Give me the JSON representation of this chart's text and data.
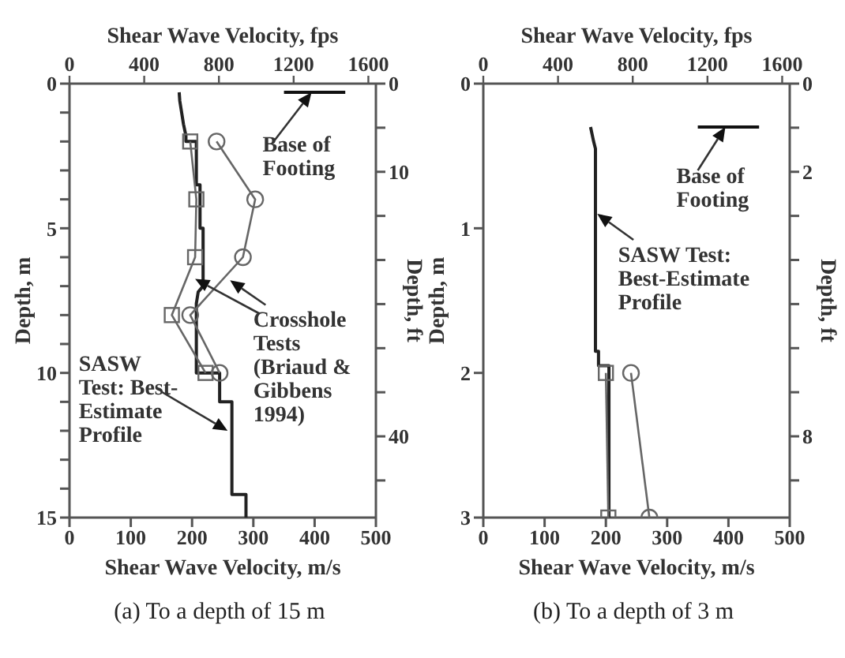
{
  "chart_data": [
    {
      "type": "line",
      "title": "(a) To a depth of 15 m",
      "xlabel": "Shear Wave Velocity, m/s",
      "x2label": "Shear Wave Velocity, fps",
      "ylabel": "Depth, m",
      "y2label": "Depth, ft",
      "xlim": [
        0,
        500
      ],
      "xticks": [
        0,
        100,
        200,
        300,
        400,
        500
      ],
      "x2lim": [
        0,
        1640.4
      ],
      "x2ticks": [
        0,
        400,
        800,
        1200,
        1600
      ],
      "ylim": [
        15,
        0
      ],
      "yticks": [
        0,
        {
          "value": 1,
          "label": null
        },
        {
          "value": 2,
          "label": null
        },
        {
          "value": 3,
          "label": null
        },
        {
          "value": 4,
          "label": null
        },
        5,
        {
          "value": 6,
          "label": null
        },
        {
          "value": 7,
          "label": null
        },
        {
          "value": 8,
          "label": null
        },
        {
          "value": 9,
          "label": null
        },
        10,
        {
          "value": 11,
          "label": null
        },
        {
          "value": 12,
          "label": null
        },
        {
          "value": 13,
          "label": null
        },
        {
          "value": 14,
          "label": null
        },
        15
      ],
      "y2lim": [
        49.21,
        0
      ],
      "y2ticks": [
        0,
        {
          "value": 5,
          "label": null
        },
        10,
        {
          "value": 15,
          "label": null
        },
        {
          "value": 20,
          "label": null
        },
        {
          "value": 25,
          "label": null
        },
        {
          "value": 30,
          "label": null
        },
        {
          "value": 35,
          "label": null
        },
        40,
        {
          "value": 45,
          "label": null
        }
      ],
      "series": [
        {
          "color": "#222222",
          "marker": "none",
          "x": [
            179,
            180,
            183,
            186,
            190,
            190,
            207,
            207,
            213,
            213,
            218,
            218,
            210,
            207,
            207,
            245,
            245,
            265,
            265,
            288,
            288
          ],
          "values": [
            0.3,
            0.6,
            1.0,
            1.4,
            1.8,
            2.0,
            2.0,
            3.5,
            3.5,
            5.0,
            5.0,
            7.0,
            7.2,
            7.6,
            10.0,
            10.0,
            11.0,
            11.0,
            14.2,
            14.2,
            15
          ]
        },
        {
          "color": "#666666",
          "marker": "circle",
          "x": [
            240,
            303,
            283,
            197,
            245
          ],
          "values": [
            2,
            4,
            6,
            8,
            10
          ]
        },
        {
          "color": "#666666",
          "marker": "square",
          "x": [
            197,
            207,
            205,
            167,
            222
          ],
          "values": [
            2,
            4,
            6,
            8,
            10
          ]
        },
        {
          "color": "#111111",
          "marker": "none",
          "x": [
            350,
            450
          ],
          "values": [
            0.3,
            0.3
          ]
        }
      ],
      "annotations": [
        {
          "text": "Base of Footing",
          "x": 395,
          "y": 0.3
        },
        {
          "text": "Crosshole Tests (Briaud & Gibbens 1994)",
          "x": 262,
          "y": 6.8
        },
        {
          "text": "SASW Test: Best-Estimate Profile",
          "x": 258,
          "y": 12
        }
      ]
    },
    {
      "type": "line",
      "title": "(b) To a depth of 3 m",
      "xlabel": "Shear Wave Velocity, m/s",
      "x2label": "Shear Wave Velocity, fps",
      "ylabel": "Depth, m",
      "y2label": "Depth, ft",
      "xlim": [
        0,
        500
      ],
      "xticks": [
        0,
        100,
        200,
        300,
        400,
        500
      ],
      "x2lim": [
        0,
        1640.4
      ],
      "x2ticks": [
        0,
        400,
        800,
        1200,
        1600
      ],
      "ylim": [
        3,
        0
      ],
      "yticks": [
        0,
        1,
        2,
        3
      ],
      "y2lim": [
        9.843,
        0
      ],
      "y2ticks": [
        0,
        {
          "value": 1,
          "label": null
        },
        2,
        {
          "value": 3,
          "label": null
        },
        {
          "value": 4,
          "label": null
        },
        {
          "value": 5,
          "label": null
        },
        {
          "value": 6,
          "label": null
        },
        {
          "value": 7,
          "label": null
        },
        8,
        {
          "value": 9,
          "label": null
        }
      ],
      "series": [
        {
          "color": "#222222",
          "marker": "none",
          "x": [
            175,
            180,
            183,
            183,
            188,
            188,
            205,
            205
          ],
          "values": [
            0.3,
            0.4,
            0.45,
            1.85,
            1.85,
            1.95,
            1.95,
            3
          ]
        },
        {
          "color": "#666666",
          "marker": "circle",
          "x": [
            241,
            271
          ],
          "values": [
            2,
            3
          ]
        },
        {
          "color": "#666666",
          "marker": "square",
          "x": [
            200,
            204
          ],
          "values": [
            2,
            3
          ]
        },
        {
          "color": "#111111",
          "marker": "none",
          "x": [
            350,
            450
          ],
          "values": [
            0.3,
            0.3
          ]
        }
      ],
      "annotations": [
        {
          "text": "Base of Footing",
          "x": 395,
          "y": 0.3
        },
        {
          "text": "SASW Test: Best-Estimate Profile",
          "x": 186,
          "y": 0.9
        }
      ]
    }
  ]
}
